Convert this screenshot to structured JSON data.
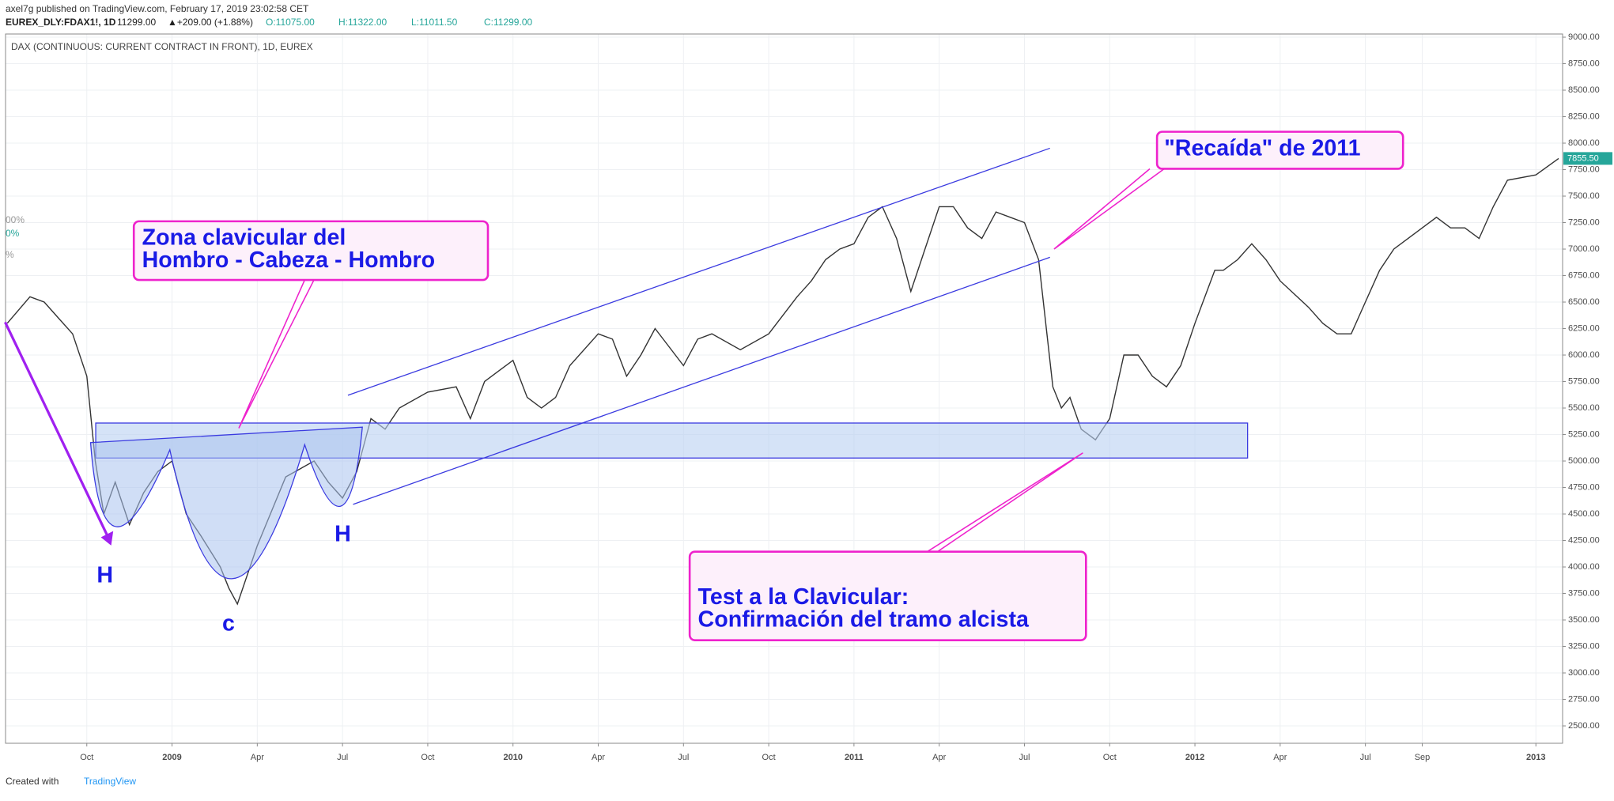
{
  "header": {
    "line1": "axel7g published on TradingView.com, February 17, 2019 23:02:58 CET",
    "symbol": "EUREX_DLY:FDAX1!, 1D",
    "price": "11299.00",
    "change": "▲+209.00 (+1.88%)",
    "open": "O:11075.00",
    "high": "H:11322.00",
    "low": "L:11011.50",
    "close": "C:11299.00"
  },
  "footer": {
    "created": "Created with",
    "brand": "TradingView"
  },
  "chart_data": {
    "type": "line",
    "title": "DAX (CONTINUOUS: CURRENT CONTRACT IN FRONT), 1D, EUREX",
    "color": "#333333",
    "grid": true,
    "x": [
      6.2,
      7,
      7.5,
      8,
      8.5,
      9,
      9.3,
      9.6,
      10,
      10.5,
      11,
      11.5,
      12,
      12.5,
      13,
      13.7,
      14,
      14.3,
      15,
      16,
      17,
      17.5,
      18,
      18.5,
      19,
      19.5,
      20,
      21,
      22,
      22.5,
      23,
      24,
      24.5,
      25,
      25.5,
      26,
      27,
      27.5,
      28,
      28.5,
      29,
      30,
      30.5,
      31,
      32,
      33,
      34,
      34.5,
      35,
      35.5,
      36,
      36.5,
      37,
      37.5,
      38,
      38.5,
      39,
      39.5,
      40,
      40.5,
      41,
      41.5,
      42,
      42.5,
      43,
      43.3,
      43.6,
      44,
      44.5,
      45,
      45.5,
      46,
      46.5,
      47,
      47.5,
      48,
      48.7,
      49,
      49.5,
      50,
      50.5,
      51,
      52,
      52.5,
      53,
      53.5,
      54,
      54.5,
      55,
      56,
      56.5,
      57,
      57.5,
      58,
      58.5,
      59,
      60,
      60.8
    ],
    "values": [
      6300,
      6550,
      6500,
      6350,
      6200,
      5800,
      5000,
      4500,
      4800,
      4400,
      4700,
      4900,
      5000,
      4500,
      4300,
      4000,
      3800,
      3650,
      4200,
      4850,
      5000,
      4800,
      4650,
      4900,
      5400,
      5300,
      5500,
      5650,
      5700,
      5400,
      5750,
      5950,
      5600,
      5500,
      5600,
      5900,
      6200,
      6150,
      5800,
      6000,
      6250,
      5900,
      6150,
      6200,
      6050,
      6200,
      6550,
      6700,
      6900,
      7000,
      7050,
      7300,
      7400,
      7100,
      6600,
      7000,
      7400,
      7400,
      7200,
      7100,
      7350,
      7300,
      7250,
      6900,
      5700,
      5500,
      5600,
      5300,
      5200,
      5400,
      6000,
      6000,
      5800,
      5700,
      5900,
      6300,
      6800,
      6800,
      6900,
      7050,
      6900,
      6700,
      6450,
      6300,
      6200,
      6200,
      6500,
      6800,
      7000,
      7200,
      7300,
      7200,
      7200,
      7100,
      7400,
      7650,
      7700,
      7855.5
    ],
    "last_label": "7855.50",
    "xlim": [
      6.14,
      60.94
    ],
    "xticks": [
      {
        "value": 9,
        "label": "Oct"
      },
      {
        "value": 12,
        "label": "2009"
      },
      {
        "value": 15,
        "label": "Apr"
      },
      {
        "value": 18,
        "label": "Jul"
      },
      {
        "value": 21,
        "label": "Oct"
      },
      {
        "value": 24,
        "label": "2010"
      },
      {
        "value": 27,
        "label": "Apr"
      },
      {
        "value": 30,
        "label": "Jul"
      },
      {
        "value": 33,
        "label": "Oct"
      },
      {
        "value": 36,
        "label": "2011"
      },
      {
        "value": 39,
        "label": "Apr"
      },
      {
        "value": 42,
        "label": "Jul"
      },
      {
        "value": 45,
        "label": "Oct"
      },
      {
        "value": 48,
        "label": "2012"
      },
      {
        "value": 51,
        "label": "Apr"
      },
      {
        "value": 54,
        "label": "Jul"
      },
      {
        "value": 56,
        "label": "Sep"
      },
      {
        "value": 60,
        "label": "2013"
      }
    ],
    "ylim": [
      2336,
      9030
    ],
    "yticks": [
      {
        "value": 2500,
        "label": "2500.00"
      },
      {
        "value": 2750,
        "label": "2750.00"
      },
      {
        "value": 3000,
        "label": "3000.00"
      },
      {
        "value": 3250,
        "label": "3250.00"
      },
      {
        "value": 3500,
        "label": "3500.00"
      },
      {
        "value": 3750,
        "label": "3750.00"
      },
      {
        "value": 4000,
        "label": "4000.00"
      },
      {
        "value": 4250,
        "label": "4250.00"
      },
      {
        "value": 4500,
        "label": "4500.00"
      },
      {
        "value": 4750,
        "label": "4750.00"
      },
      {
        "value": 5000,
        "label": "5000.00"
      },
      {
        "value": 5250,
        "label": "5250.00"
      },
      {
        "value": 5500,
        "label": "5500.00"
      },
      {
        "value": 5750,
        "label": "5750.00"
      },
      {
        "value": 6000,
        "label": "6000.00"
      },
      {
        "value": 6250,
        "label": "6250.00"
      },
      {
        "value": 6500,
        "label": "6500.00"
      },
      {
        "value": 6750,
        "label": "6750.00"
      },
      {
        "value": 7000,
        "label": "7000.00"
      },
      {
        "value": 7250,
        "label": "7250.00"
      },
      {
        "value": 7500,
        "label": "7500.00"
      },
      {
        "value": 7750,
        "label": "7750.00"
      },
      {
        "value": 8000,
        "label": "8000.00"
      },
      {
        "value": 8250,
        "label": "8250.00"
      },
      {
        "value": 8500,
        "label": "8500.00"
      },
      {
        "value": 8750,
        "label": "8750.00"
      },
      {
        "value": 9000,
        "label": "9000.00"
      }
    ],
    "fragments": [
      "00%",
      "0%",
      "%"
    ],
    "annotations": {
      "zone": [
        "Zona clavicular del",
        "Hombro - Cabeza - Hombro"
      ],
      "relapse": "\"Recaída\" de 2011",
      "test": [
        "Test a la Clavicular:",
        "Confirmación del tramo alcista"
      ],
      "left_shoulder": "H",
      "head": "c",
      "right_shoulder": "H"
    }
  }
}
